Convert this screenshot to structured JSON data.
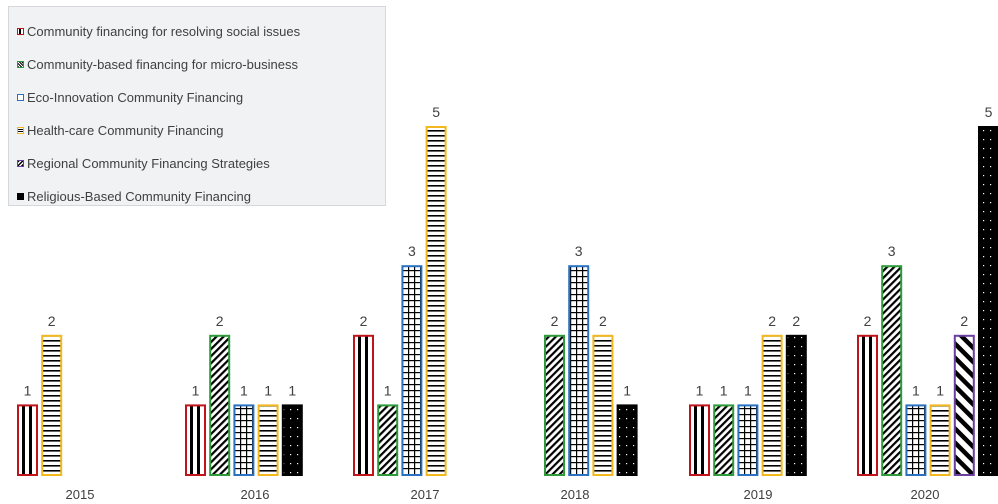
{
  "chart_data": {
    "type": "bar",
    "categories": [
      "2015",
      "2016",
      "2017",
      "2018",
      "2019",
      "2020"
    ],
    "ylim": [
      0,
      5
    ],
    "grid": false,
    "legend_position": "top-left",
    "series": [
      {
        "name": "Community financing for resolving social issues",
        "color": "#c0141b",
        "pattern": "vertical-stripes",
        "values": [
          1,
          1,
          2,
          null,
          1,
          2
        ]
      },
      {
        "name": "Community-based financing for micro-business",
        "color": "#2e9a3a",
        "pattern": "diagonal-stripes",
        "values": [
          null,
          2,
          1,
          2,
          1,
          3
        ]
      },
      {
        "name": "Eco-Innovation Community Financing",
        "color": "#2a72c1",
        "pattern": "grid",
        "values": [
          null,
          1,
          3,
          3,
          1,
          1
        ]
      },
      {
        "name": "Health-care Community Financing",
        "color": "#f2b81d",
        "pattern": "horizontal-stripes",
        "values": [
          2,
          1,
          5,
          2,
          2,
          1
        ]
      },
      {
        "name": "Regional Community Financing Strategies",
        "color": "#6a3fa0",
        "pattern": "wide-diagonal-stripes",
        "values": [
          null,
          null,
          null,
          null,
          null,
          2
        ]
      },
      {
        "name": "Religious-Based Community Financing",
        "color": "#000000",
        "pattern": "dots",
        "values": [
          null,
          1,
          null,
          1,
          2,
          5
        ]
      }
    ]
  }
}
